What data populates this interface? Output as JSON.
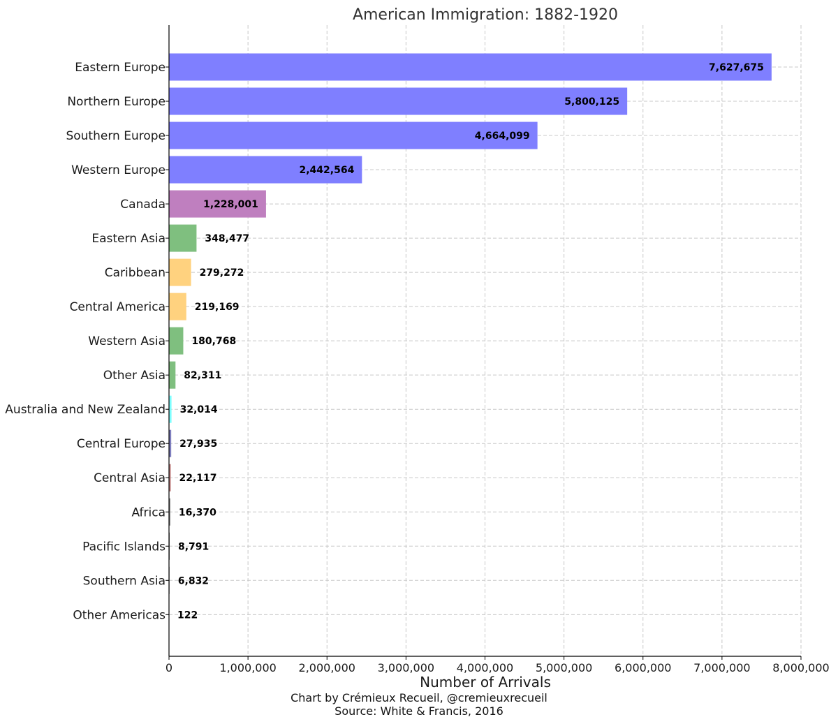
{
  "chart_data": {
    "type": "bar",
    "orientation": "horizontal",
    "title": "American Immigration: 1882-1920",
    "xlabel": "Number of Arrivals",
    "ylabel": "",
    "credits": [
      "Chart by Crémieux Recueil, @cremieuxrecueil",
      "Source: White & Francis, 2016"
    ],
    "xlim": [
      0,
      8000000
    ],
    "grid": true,
    "x_ticks": [
      0,
      1000000,
      2000000,
      3000000,
      4000000,
      5000000,
      6000000,
      7000000,
      8000000
    ],
    "x_tick_labels": [
      "0",
      "1,000,000",
      "2,000,000",
      "3,000,000",
      "4,000,000",
      "5,000,000",
      "6,000,000",
      "7,000,000",
      "8,000,000"
    ],
    "categories": [
      "Eastern Europe",
      "Northern Europe",
      "Southern Europe",
      "Western Europe",
      "Canada",
      "Eastern Asia",
      "Caribbean",
      "Central America",
      "Western Asia",
      "Other Asia",
      "Australia and New Zealand",
      "Central Europe",
      "Central Asia",
      "Africa",
      "Pacific Islands",
      "Southern Asia",
      "Other Americas"
    ],
    "values": [
      7627675,
      5800125,
      4664099,
      2442564,
      1228001,
      348477,
      279272,
      219169,
      180768,
      82311,
      32014,
      27935,
      22117,
      16370,
      8791,
      6832,
      122
    ],
    "value_labels": [
      "7,627,675",
      "5,800,125",
      "4,664,099",
      "2,442,564",
      "1,228,001",
      "348,477",
      "279,272",
      "219,169",
      "180,768",
      "82,311",
      "32,014",
      "27,935",
      "22,117",
      "16,370",
      "8,791",
      "6,832",
      "122"
    ],
    "colors": [
      "#7f7fff",
      "#7f7fff",
      "#7f7fff",
      "#7f7fff",
      "#bf7fbf",
      "#7fbf7f",
      "#ffd27f",
      "#ffd27f",
      "#7fbf7f",
      "#7fbf7f",
      "#7fffff",
      "#7f7fbf",
      "#bf7f7f",
      "#7f7f7f",
      "#7f7f7f",
      "#7f7f7f",
      "#7f7f7f"
    ]
  }
}
